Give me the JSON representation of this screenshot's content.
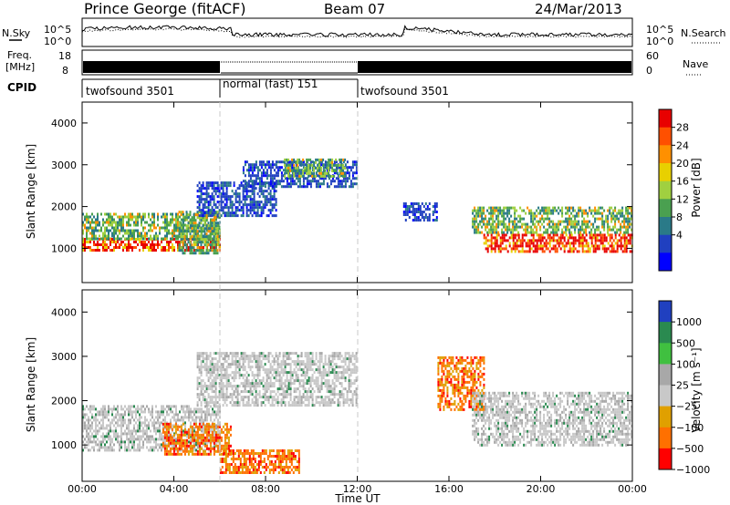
{
  "header": {
    "station": "Prince George (fitACF)",
    "beam": "Beam 07",
    "date": "24/Mar/2013"
  },
  "noise_panel": {
    "left_label": "N.Sky",
    "right_label": "N.Search",
    "left_ticks": [
      "10^5",
      "10^0"
    ],
    "right_ticks": [
      "10^5",
      "10^0"
    ]
  },
  "freq_panel": {
    "left_label_1": "Freq.",
    "left_label_2": "[MHz]",
    "right_label": "Nave",
    "left_ticks": [
      "18",
      "8"
    ],
    "right_ticks": [
      "60",
      "0"
    ]
  },
  "cpid": {
    "label": "CPID",
    "segments": [
      {
        "name": "twofsound 3501",
        "start_h": 0,
        "end_h": 6
      },
      {
        "name": "normal (fast) 151",
        "start_h": 6,
        "end_h": 12
      },
      {
        "name": "twofsound 3501",
        "start_h": 12,
        "end_h": 24
      }
    ]
  },
  "time_axis": {
    "label": "Time UT",
    "ticks": [
      "00:00",
      "04:00",
      "08:00",
      "12:00",
      "16:00",
      "20:00",
      "00:00"
    ]
  },
  "power_panel": {
    "ylabel": "Slant Range [km]",
    "yticks": [
      "4000",
      "3000",
      "2000",
      "1000"
    ],
    "colorbar_label": "Power [dB]",
    "colorbar_ticks": [
      "28",
      "24",
      "20",
      "16",
      "12",
      "8",
      "4"
    ],
    "colors": [
      "#e80000",
      "#ff5000",
      "#ff9000",
      "#e8d000",
      "#a0d040",
      "#4aa050",
      "#2a7a88",
      "#2040c0",
      "#0000ff"
    ]
  },
  "velocity_panel": {
    "ylabel": "Slant Range [km]",
    "yticks": [
      "4000",
      "3000",
      "2000",
      "1000"
    ],
    "colorbar_label": "Velocity [m s⁻¹]",
    "colorbar_ticks": [
      "1000",
      "500",
      "100",
      "25",
      "−25",
      "−100",
      "−500",
      "−1000"
    ],
    "colors": [
      "#2040c0",
      "#2a8a50",
      "#40c040",
      "#a8a8a8",
      "#c8c8c8",
      "#e0a000",
      "#ff7000",
      "#ff0000"
    ]
  },
  "chart_data": [
    {
      "type": "heatmap",
      "title": "Power",
      "x_range_hours": [
        0,
        24
      ],
      "ylim_km": [
        180,
        4500
      ],
      "bands": [
        {
          "t0": 0.0,
          "t1": 6.0,
          "r0": 950,
          "r1": 1250,
          "level": "strong"
        },
        {
          "t0": 0.0,
          "t1": 6.0,
          "r0": 1250,
          "r1": 1850,
          "level": "medium"
        },
        {
          "t0": 4.2,
          "t1": 6.0,
          "r0": 900,
          "r1": 1900,
          "level": "medium"
        },
        {
          "t0": 5.0,
          "t1": 8.5,
          "r0": 1800,
          "r1": 2600,
          "level": "weak"
        },
        {
          "t0": 7.0,
          "t1": 12.0,
          "r0": 2500,
          "r1": 3100,
          "level": "weak"
        },
        {
          "t0": 8.8,
          "t1": 11.5,
          "r0": 2750,
          "r1": 3150,
          "level": "medium"
        },
        {
          "t0": 14.0,
          "t1": 15.5,
          "r0": 1700,
          "r1": 2100,
          "level": "weak"
        },
        {
          "t0": 17.5,
          "t1": 24.0,
          "r0": 950,
          "r1": 1350,
          "level": "strong"
        },
        {
          "t0": 17.0,
          "t1": 24.0,
          "r0": 1350,
          "r1": 2000,
          "level": "medium"
        }
      ]
    },
    {
      "type": "heatmap",
      "title": "Velocity",
      "x_range_hours": [
        0,
        24
      ],
      "ylim_km": [
        180,
        4500
      ],
      "bands": [
        {
          "t0": 0.0,
          "t1": 6.0,
          "r0": 900,
          "r1": 1900,
          "level": "near-zero"
        },
        {
          "t0": 3.5,
          "t1": 6.5,
          "r0": 800,
          "r1": 1500,
          "level": "negative"
        },
        {
          "t0": 6.0,
          "t1": 9.5,
          "r0": 400,
          "r1": 900,
          "level": "negative"
        },
        {
          "t0": 5.0,
          "t1": 12.0,
          "r0": 1900,
          "r1": 3100,
          "level": "near-zero"
        },
        {
          "t0": 15.5,
          "t1": 17.5,
          "r0": 1800,
          "r1": 3000,
          "level": "negative"
        },
        {
          "t0": 17.0,
          "t1": 24.0,
          "r0": 1000,
          "r1": 2200,
          "level": "near-zero"
        }
      ]
    }
  ]
}
